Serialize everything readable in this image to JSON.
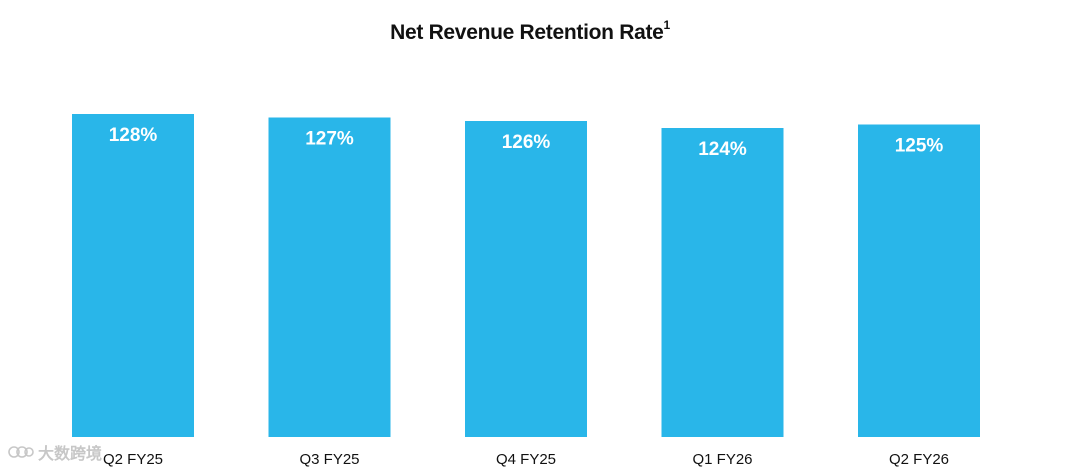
{
  "chart_data": {
    "type": "bar",
    "title": "Net Revenue Retention Rate",
    "title_footnote": "1",
    "categories": [
      "Q2 FY25",
      "Q3 FY25",
      "Q4 FY25",
      "Q1 FY26",
      "Q2 FY26"
    ],
    "values": [
      128,
      127,
      126,
      124,
      125
    ],
    "data_labels": [
      "128%",
      "127%",
      "126%",
      "124%",
      "125%"
    ],
    "xlabel": "",
    "ylabel": "",
    "ylim": [
      0,
      128
    ],
    "bar_color": "#29b6e9",
    "grid": false,
    "legend": "none"
  },
  "watermark": {
    "text": "大数跨境"
  }
}
